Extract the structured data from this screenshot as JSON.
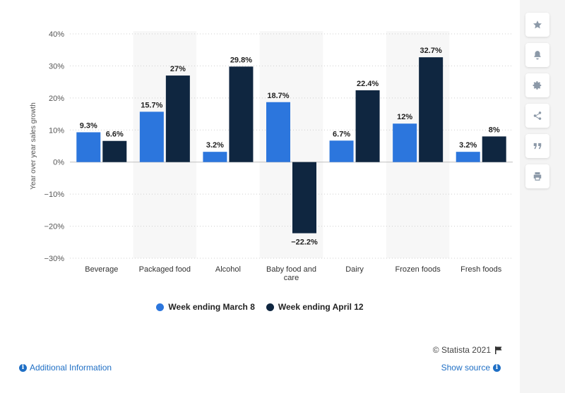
{
  "chart_data": {
    "type": "bar",
    "categories": [
      "Beverage",
      "Packaged food",
      "Alcohol",
      "Baby food and care",
      "Dairy",
      "Frozen foods",
      "Fresh foods"
    ],
    "category_lines": [
      [
        "Beverage"
      ],
      [
        "Packaged food"
      ],
      [
        "Alcohol"
      ],
      [
        "Baby food and",
        "care"
      ],
      [
        "Dairy"
      ],
      [
        "Frozen foods"
      ],
      [
        "Fresh foods"
      ]
    ],
    "series": [
      {
        "name": "Week ending March 8",
        "color": "#2c76dd",
        "values": [
          9.3,
          15.7,
          3.2,
          18.7,
          6.7,
          12,
          3.2
        ],
        "labels": [
          "9.3%",
          "15.7%",
          "3.2%",
          "18.7%",
          "6.7%",
          "12%",
          "3.2%"
        ]
      },
      {
        "name": "Week ending April 12",
        "color": "#0f2640",
        "values": [
          6.6,
          27,
          29.8,
          -22.2,
          22.4,
          32.7,
          8
        ],
        "labels": [
          "6.6%",
          "27%",
          "29.8%",
          "−22.2%",
          "22.4%",
          "32.7%",
          "8%"
        ]
      }
    ],
    "ylabel": "Year over year sales growth",
    "ylim": [
      -30,
      40
    ],
    "yticks": [
      40,
      30,
      20,
      10,
      0,
      -10,
      -20,
      -30
    ],
    "ytick_labels": [
      "40%",
      "30%",
      "20%",
      "10%",
      "0%",
      "−10%",
      "−20%",
      "−30%"
    ],
    "grid": true,
    "legend_position": "bottom"
  },
  "credit": "© Statista 2021",
  "footer": {
    "info_label": "Additional Information",
    "source_label": "Show source"
  },
  "sidebar": {
    "icons": [
      "star-icon",
      "bell-icon",
      "gear-icon",
      "share-icon",
      "quote-icon",
      "print-icon"
    ]
  }
}
